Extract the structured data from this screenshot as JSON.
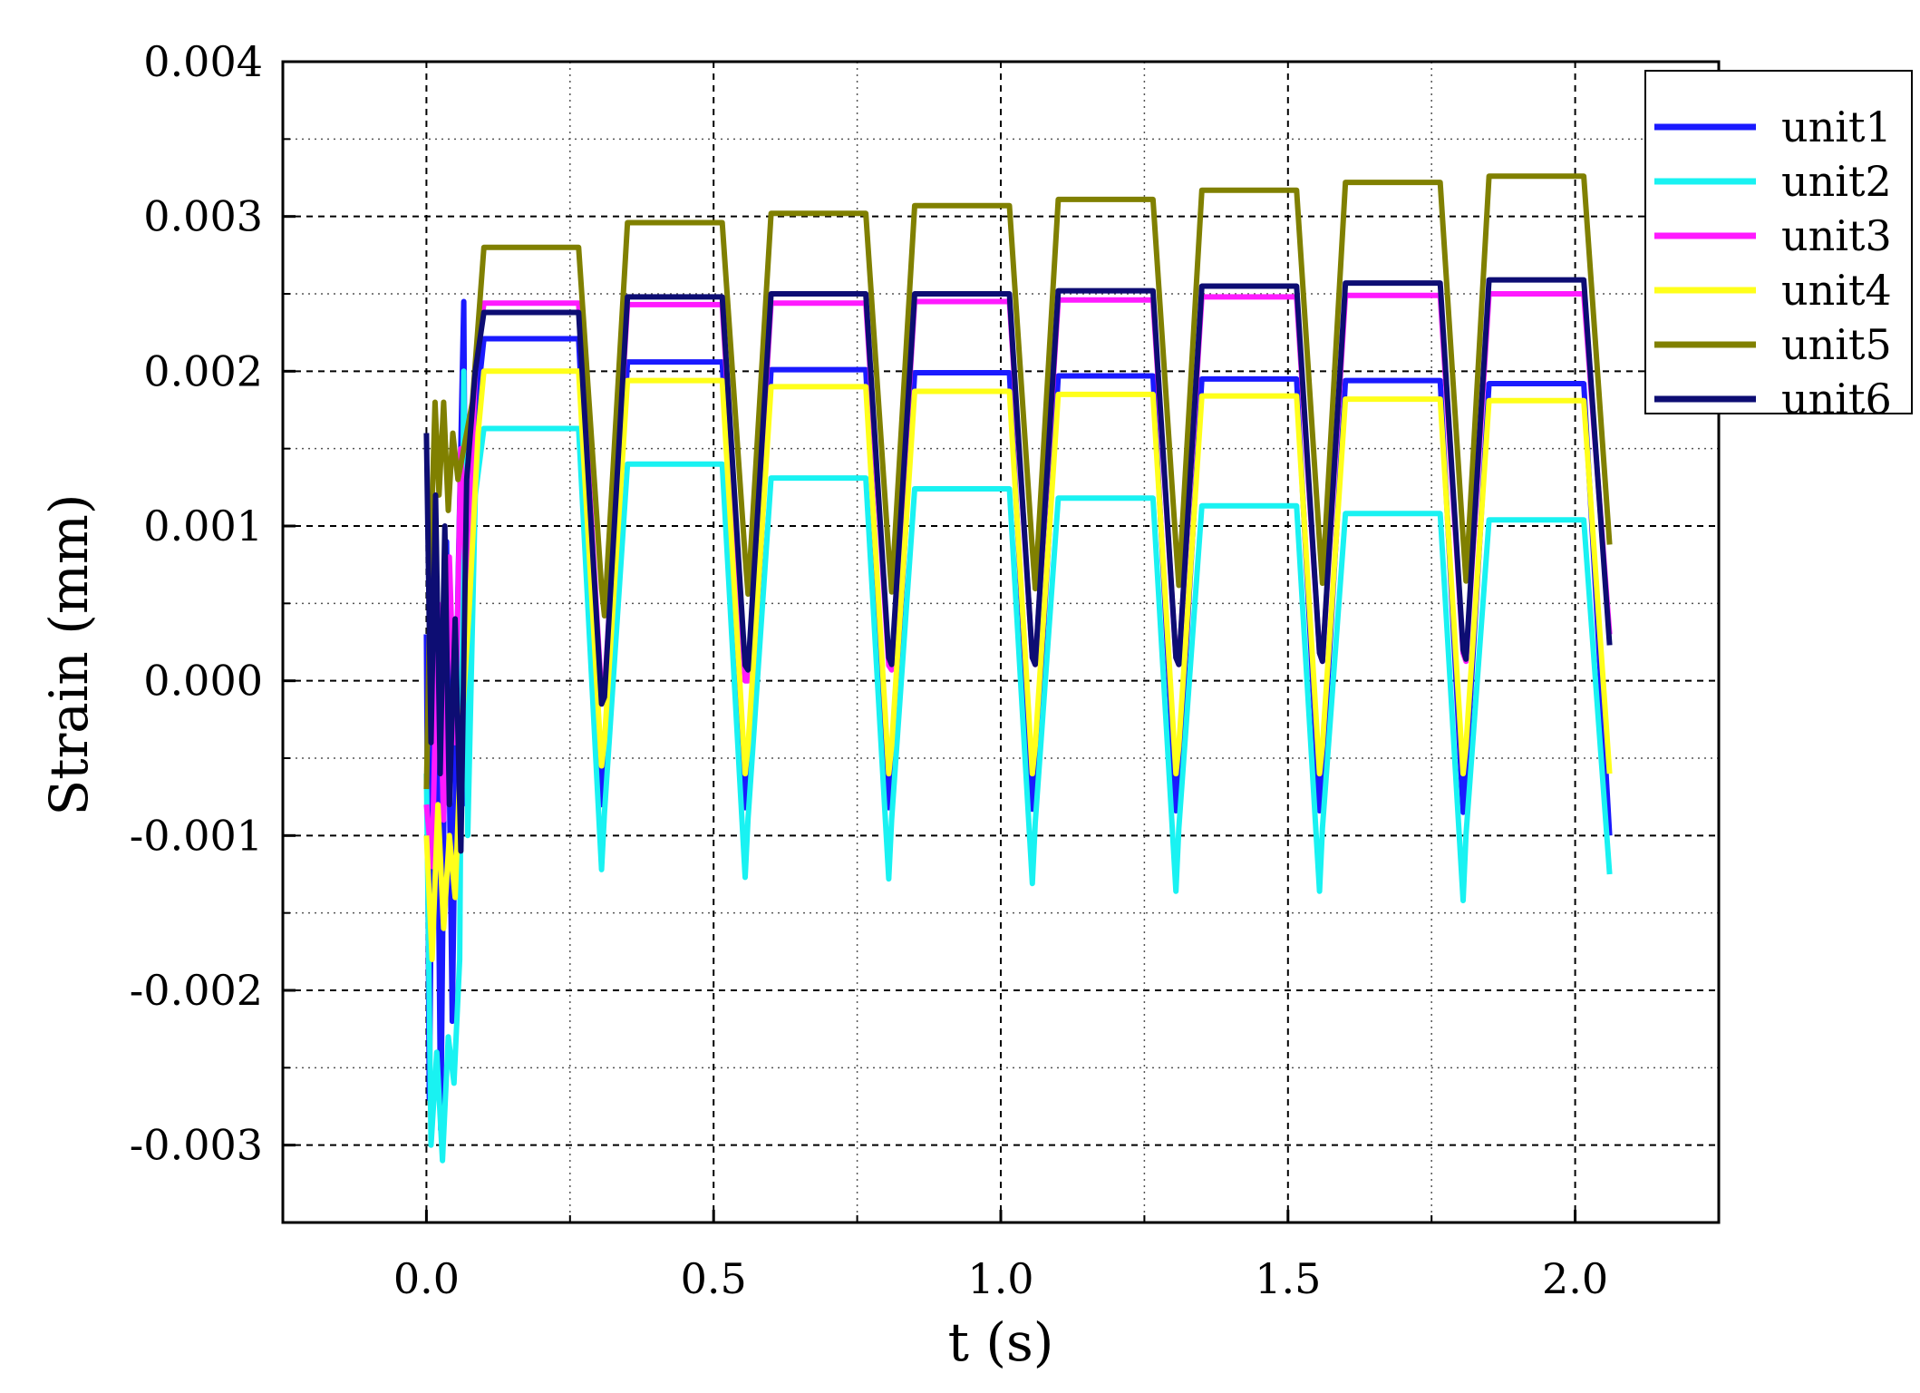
{
  "chart_data": {
    "type": "line",
    "xlabel": "t (s)",
    "ylabel": "Strain (mm)",
    "xlim": [
      -0.25,
      2.25
    ],
    "ylim": [
      -0.0035,
      0.004
    ],
    "x_ticks": [
      0.0,
      0.5,
      1.0,
      1.5,
      2.0
    ],
    "x_tick_labels": [
      "0.0",
      "0.5",
      "1.0",
      "1.5",
      "2.0"
    ],
    "y_ticks": [
      -0.003,
      -0.002,
      -0.001,
      0.0,
      0.001,
      0.002,
      0.003,
      0.004
    ],
    "y_tick_labels": [
      "-0.003",
      "-0.002",
      "-0.001",
      "0.000",
      "0.001",
      "0.002",
      "0.003",
      "0.004"
    ],
    "grid": true,
    "legend_position": "top-right",
    "cycle": {
      "first_plateau_start": 0.1,
      "period": 0.25,
      "count": 8,
      "plateau_duration": 0.165,
      "fall_duration": 0.04,
      "rise_duration": 0.04,
      "end": 2.06
    },
    "series": [
      {
        "name": "unit1",
        "color": "#1a1aff",
        "plateau": [
          0.00221,
          0.00206,
          0.00201,
          0.00199,
          0.00197,
          0.00195,
          0.00194,
          0.00192
        ],
        "trough": [
          -0.0008,
          -0.00082,
          -0.00082,
          -0.00083,
          -0.00084,
          -0.00084,
          -0.00085,
          -0.00085
        ],
        "end_value": -0.001,
        "transient": [
          [
            0.0,
            0.0003
          ],
          [
            0.005,
            -0.0027
          ],
          [
            0.015,
            0.0012
          ],
          [
            0.025,
            -0.0029
          ],
          [
            0.035,
            0.0009
          ],
          [
            0.045,
            -0.0022
          ],
          [
            0.055,
            0.0006
          ],
          [
            0.065,
            0.00245
          ],
          [
            0.07,
            -0.0008
          ],
          [
            0.08,
            0.0015
          ],
          [
            0.1,
            0.00221
          ]
        ]
      },
      {
        "name": "unit2",
        "color": "#19f2f2",
        "plateau": [
          0.00163,
          0.0014,
          0.00131,
          0.00124,
          0.00118,
          0.00113,
          0.00108,
          0.00104
        ],
        "trough": [
          -0.00122,
          -0.00127,
          -0.00128,
          -0.00131,
          -0.00136,
          -0.00136,
          -0.00142,
          -0.00142
        ],
        "end_value": -0.00125,
        "transient": [
          [
            0.0,
            -0.0006
          ],
          [
            0.008,
            -0.003
          ],
          [
            0.018,
            -0.0024
          ],
          [
            0.028,
            -0.0031
          ],
          [
            0.038,
            -0.0023
          ],
          [
            0.048,
            -0.0026
          ],
          [
            0.058,
            -0.0018
          ],
          [
            0.065,
            0.002
          ],
          [
            0.072,
            -0.001
          ],
          [
            0.085,
            0.0012
          ],
          [
            0.1,
            0.00163
          ]
        ]
      },
      {
        "name": "unit3",
        "color": "#ff1aff",
        "plateau": [
          0.00244,
          0.00243,
          0.00244,
          0.00245,
          0.00246,
          0.00248,
          0.00249,
          0.0025
        ],
        "trough": [
          -0.0001,
          0.0,
          0.0001,
          0.00015,
          0.00015,
          0.00018,
          0.00018,
          0.0002
        ],
        "end_value": 0.0003,
        "transient": [
          [
            0.0,
            -0.0008
          ],
          [
            0.01,
            -0.0012
          ],
          [
            0.02,
            0.0005
          ],
          [
            0.03,
            -0.0009
          ],
          [
            0.04,
            0.0008
          ],
          [
            0.05,
            -0.0004
          ],
          [
            0.06,
            0.0015
          ],
          [
            0.07,
            0.0005
          ],
          [
            0.085,
            0.002
          ],
          [
            0.1,
            0.00244
          ]
        ]
      },
      {
        "name": "unit4",
        "color": "#ffff1a",
        "plateau": [
          0.002,
          0.00194,
          0.0019,
          0.00187,
          0.00185,
          0.00184,
          0.00182,
          0.00181
        ],
        "trough": [
          -0.00055,
          -0.0006,
          -0.0006,
          -0.0006,
          -0.0006,
          -0.0006,
          -0.0006,
          -0.0006
        ],
        "end_value": -0.0006,
        "transient": [
          [
            0.0,
            -0.001
          ],
          [
            0.01,
            -0.0018
          ],
          [
            0.02,
            -0.0008
          ],
          [
            0.03,
            -0.0016
          ],
          [
            0.04,
            -0.001
          ],
          [
            0.05,
            -0.0014
          ],
          [
            0.06,
            -0.0004
          ],
          [
            0.075,
            0.0005
          ],
          [
            0.09,
            0.0016
          ],
          [
            0.1,
            0.002
          ]
        ]
      },
      {
        "name": "unit5",
        "color": "#808000",
        "plateau": [
          0.0028,
          0.00296,
          0.00302,
          0.00307,
          0.00311,
          0.00317,
          0.00322,
          0.00326
        ],
        "trough": [
          0.0006,
          0.0008,
          0.00082,
          0.00085,
          0.00088,
          0.0009,
          0.00092,
          0.00094
        ],
        "end_value": 0.00088,
        "transient": [
          [
            0.0,
            -0.0007
          ],
          [
            0.008,
            0.0009
          ],
          [
            0.015,
            0.0018
          ],
          [
            0.022,
            0.0012
          ],
          [
            0.03,
            0.0018
          ],
          [
            0.038,
            0.0011
          ],
          [
            0.046,
            0.0016
          ],
          [
            0.055,
            0.0013
          ],
          [
            0.065,
            0.0015
          ],
          [
            0.08,
            0.0018
          ],
          [
            0.1,
            0.0028
          ]
        ]
      },
      {
        "name": "unit6",
        "color": "#0d0d73",
        "plateau": [
          0.00238,
          0.00248,
          0.0025,
          0.0025,
          0.00252,
          0.00255,
          0.00257,
          0.00259
        ],
        "trough": [
          -0.00015,
          0.0001,
          0.00015,
          0.00015,
          0.00015,
          0.00018,
          0.0002,
          0.00022
        ],
        "end_value": 0.00023,
        "transient": [
          [
            0.0,
            0.0016
          ],
          [
            0.008,
            -0.0004
          ],
          [
            0.016,
            0.0012
          ],
          [
            0.024,
            -0.0006
          ],
          [
            0.032,
            0.001
          ],
          [
            0.04,
            -0.0008
          ],
          [
            0.05,
            0.0004
          ],
          [
            0.06,
            -0.0011
          ],
          [
            0.07,
            0.0013
          ],
          [
            0.085,
            0.002
          ],
          [
            0.1,
            0.00238
          ]
        ]
      }
    ]
  }
}
